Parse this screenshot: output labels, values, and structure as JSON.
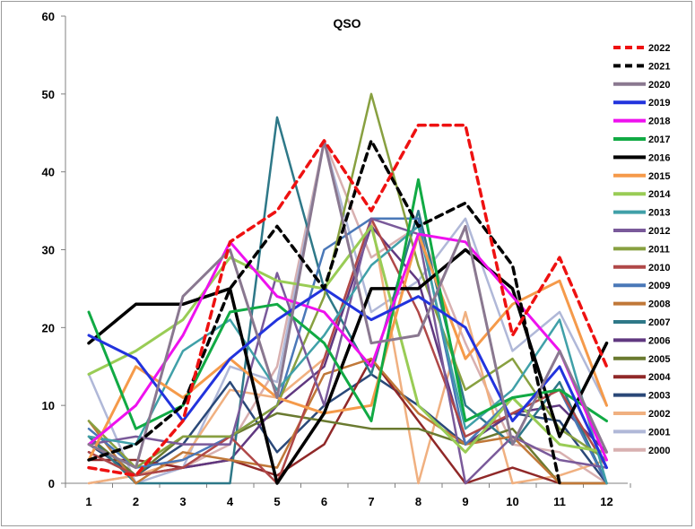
{
  "chart_data": {
    "type": "line",
    "title": "QSO",
    "xlabel": "",
    "ylabel": "",
    "x": [
      1,
      2,
      3,
      4,
      5,
      6,
      7,
      8,
      9,
      10,
      11,
      12
    ],
    "ylim": [
      0,
      60
    ],
    "yticks": [
      0,
      10,
      20,
      30,
      40,
      50,
      60
    ],
    "grid": false,
    "legend": "right",
    "series": [
      {
        "name": "2022",
        "color": "#ee1111",
        "dash": true,
        "width": 3.5,
        "values": [
          2,
          1,
          8,
          31,
          35,
          44,
          35,
          46,
          46,
          19,
          29,
          15
        ]
      },
      {
        "name": "2021",
        "color": "#000000",
        "dash": true,
        "width": 3.5,
        "values": [
          3,
          5,
          10,
          25,
          33,
          25,
          44,
          33,
          36,
          28,
          0,
          null
        ]
      },
      {
        "name": "2020",
        "color": "#8a7890",
        "dash": false,
        "width": 3,
        "values": [
          5,
          2,
          24,
          30,
          11,
          44,
          18,
          19,
          33,
          5,
          17,
          4
        ]
      },
      {
        "name": "2019",
        "color": "#2233dd",
        "dash": false,
        "width": 3,
        "values": [
          19,
          16,
          8,
          16,
          21,
          25,
          21,
          24,
          20,
          8,
          15,
          2
        ]
      },
      {
        "name": "2018",
        "color": "#ee11ee",
        "dash": false,
        "width": 3,
        "values": [
          5,
          10,
          19,
          31,
          24,
          22,
          15,
          32,
          31,
          24,
          17,
          3
        ]
      },
      {
        "name": "2017",
        "color": "#11aa44",
        "dash": false,
        "width": 3,
        "values": [
          22,
          7,
          10,
          22,
          23,
          18,
          8,
          39,
          8,
          11,
          12,
          8
        ]
      },
      {
        "name": "2016",
        "color": "#000000",
        "dash": false,
        "width": 3.5,
        "values": [
          18,
          23,
          23,
          25,
          0,
          9,
          25,
          25,
          30,
          25,
          6,
          18
        ]
      },
      {
        "name": "2015",
        "color": "#f59a4a",
        "dash": false,
        "width": 3,
        "values": [
          3,
          15,
          11,
          16,
          11,
          9,
          10,
          32,
          16,
          23,
          26,
          10
        ]
      },
      {
        "name": "2014",
        "color": "#99cc55",
        "dash": false,
        "width": 3,
        "values": [
          14,
          17,
          21,
          29,
          26,
          25,
          33,
          10,
          4,
          11,
          5,
          4
        ]
      },
      {
        "name": "2013",
        "color": "#40a0a8",
        "dash": false,
        "width": 2.5,
        "values": [
          6,
          5,
          17,
          21,
          12,
          19,
          28,
          33,
          7,
          12,
          21,
          0
        ]
      },
      {
        "name": "2012",
        "color": "#7a5a9a",
        "dash": false,
        "width": 2.5,
        "values": [
          5,
          6,
          5,
          5,
          27,
          10,
          34,
          32,
          0,
          6,
          3,
          2
        ]
      },
      {
        "name": "2011",
        "color": "#88a040",
        "dash": false,
        "width": 2.5,
        "values": [
          8,
          2,
          6,
          6,
          10,
          24,
          50,
          28,
          12,
          16,
          7,
          3
        ]
      },
      {
        "name": "2010",
        "color": "#b04848",
        "dash": false,
        "width": 2.5,
        "values": [
          4,
          1,
          2,
          6,
          0,
          16,
          34,
          22,
          6,
          9,
          12,
          2
        ]
      },
      {
        "name": "2009",
        "color": "#4a78b8",
        "dash": false,
        "width": 2.5,
        "values": [
          7,
          2,
          3,
          6,
          10,
          30,
          34,
          34,
          5,
          11,
          12,
          0
        ]
      },
      {
        "name": "2008",
        "color": "#c07838",
        "dash": false,
        "width": 2.5,
        "values": [
          8,
          0,
          4,
          3,
          2,
          14,
          16,
          9,
          5,
          6,
          0,
          0
        ]
      },
      {
        "name": "2007",
        "color": "#2e7888",
        "dash": false,
        "width": 2.5,
        "values": [
          6,
          0,
          0,
          0,
          47,
          25,
          14,
          35,
          10,
          5,
          13,
          0
        ]
      },
      {
        "name": "2006",
        "color": "#603880",
        "dash": false,
        "width": 2.5,
        "values": [
          4,
          1,
          2,
          3,
          10,
          15,
          33,
          26,
          5,
          9,
          10,
          4
        ]
      },
      {
        "name": "2005",
        "color": "#6a7a30",
        "dash": false,
        "width": 2.5,
        "values": [
          6,
          1,
          6,
          6,
          9,
          8,
          7,
          7,
          5,
          7,
          0,
          0
        ]
      },
      {
        "name": "2004",
        "color": "#902828",
        "dash": false,
        "width": 2.5,
        "values": [
          3,
          3,
          2,
          3,
          1,
          5,
          16,
          8,
          0,
          2,
          0,
          0
        ]
      },
      {
        "name": "2003",
        "color": "#2a4878",
        "dash": false,
        "width": 2.5,
        "values": [
          5,
          1,
          5,
          13,
          4,
          10,
          14,
          10,
          5,
          9,
          8,
          0
        ]
      },
      {
        "name": "2002",
        "color": "#f0b080",
        "dash": false,
        "width": 2.5,
        "values": [
          0,
          1,
          3,
          12,
          11,
          16,
          34,
          0,
          22,
          0,
          1,
          3
        ]
      },
      {
        "name": "2001",
        "color": "#b0b8d8",
        "dash": false,
        "width": 2.5,
        "values": [
          14,
          0,
          2,
          15,
          13,
          44,
          22,
          26,
          34,
          17,
          22,
          10
        ]
      },
      {
        "name": "2000",
        "color": "#d8b0b0",
        "dash": false,
        "width": 2.5,
        "values": [
          0,
          1,
          2,
          5,
          15,
          44,
          29,
          33,
          18,
          5,
          4,
          0
        ]
      }
    ]
  }
}
